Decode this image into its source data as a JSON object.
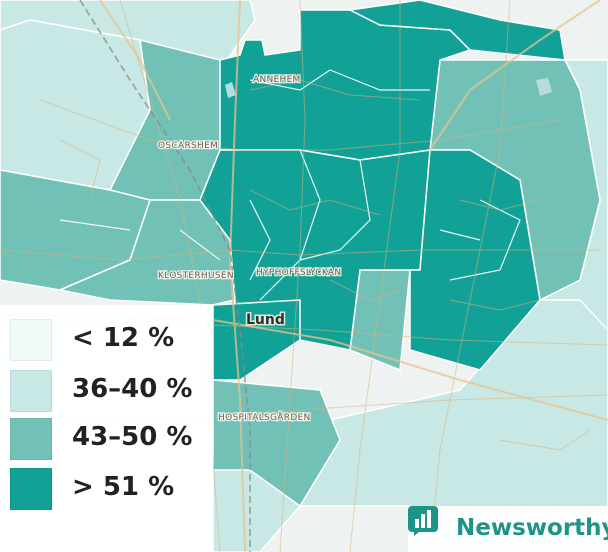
{
  "map": {
    "places": {
      "annehem": "ANNEHEM",
      "oscarshem": "OSCARSHEM",
      "klosterhusen": "KLOSTERHUSEN",
      "hyphoffslyckan": "HYPHOFFSLYCKAN",
      "city": "Lund",
      "hospitalsgarden": "HOSPITALSGÅRDEN"
    }
  },
  "legend": {
    "items": [
      {
        "label": "< 12 %",
        "color": "#f3fbfa"
      },
      {
        "label": "36–40 %",
        "color": "#c8e8e5"
      },
      {
        "label": "43–50 %",
        "color": "#72c1b7"
      },
      {
        "label": "> 51 %",
        "color": "#12a196"
      }
    ]
  },
  "brand": {
    "name": "Newsworthy",
    "icon": "bar-chart-logo-icon",
    "color": "#1e9488"
  }
}
